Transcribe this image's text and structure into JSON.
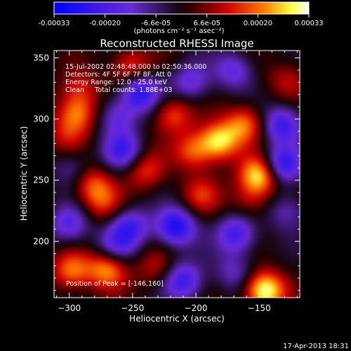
{
  "colorbar": {
    "tick_labels": [
      "-0.00033",
      "-0.00020",
      "-6.6e-05",
      "6.6e-05",
      "0.00020",
      "0.00033"
    ],
    "unit_label": "(photons cm⁻² s⁻¹ asec⁻²)",
    "range": [
      -0.00033,
      0.00033
    ]
  },
  "info": {
    "time_range": "15-Jul-2002 02:48:48.000 to 02:50:36.000",
    "detectors": "Detectors: 4F 5F 6F 7F 8F, Att 0",
    "energy": "Energy Range: 12.0 - 25.0 keV",
    "method": "Clean     Total counts: 1.88E+03",
    "peak": "Position of Peak = [-146,160]"
  },
  "timestamp": "17-Apr-2013 18:31",
  "colors": {
    "background": "#000000",
    "foreground": "#ffffff"
  },
  "chart_data": {
    "type": "heatmap",
    "title": "Reconstructed RHESSI Image",
    "xlabel": "Heliocentric X (arcsec)",
    "ylabel": "Heliocentric Y (arcsec)",
    "xlim": [
      -312,
      -118
    ],
    "ylim": [
      154,
      356
    ],
    "xticks": [
      -300,
      -250,
      -200,
      -150
    ],
    "yticks": [
      200,
      250,
      300,
      350
    ],
    "xtick_labels": [
      "−300",
      "−250",
      "−200",
      "−150"
    ],
    "ytick_labels": [
      "200",
      "250",
      "300",
      "350"
    ],
    "peak": [
      -146,
      160
    ],
    "colormap": "rhessi-blue-red-yellow-white",
    "blobs": [
      {
        "x": -146,
        "y": 160,
        "value": 0.00033
      },
      {
        "x": -150,
        "y": 254,
        "value": 0.0003
      },
      {
        "x": -182,
        "y": 282,
        "value": 0.00027
      },
      {
        "x": -162,
        "y": 296,
        "value": 0.0002
      },
      {
        "x": -202,
        "y": 274,
        "value": 0.00018
      },
      {
        "x": -218,
        "y": 304,
        "value": 0.00017
      },
      {
        "x": -196,
        "y": 238,
        "value": 0.00013
      },
      {
        "x": -240,
        "y": 258,
        "value": 0.00015
      },
      {
        "x": -294,
        "y": 305,
        "value": 0.0002
      },
      {
        "x": -292,
        "y": 325,
        "value": 0.00012
      },
      {
        "x": -302,
        "y": 287,
        "value": 0.0001
      },
      {
        "x": -282,
        "y": 247,
        "value": 0.00016
      },
      {
        "x": -274,
        "y": 232,
        "value": 0.00013
      },
      {
        "x": -252,
        "y": 343,
        "value": 0.00016
      },
      {
        "x": -298,
        "y": 176,
        "value": 0.0002
      },
      {
        "x": -270,
        "y": 178,
        "value": 0.00024
      },
      {
        "x": -232,
        "y": 178,
        "value": 0.0001
      },
      {
        "x": -158,
        "y": 234,
        "value": 0.0001
      },
      {
        "x": -128,
        "y": 332,
        "value": 0.0001
      },
      {
        "x": -244,
        "y": 322,
        "value": -0.00025
      },
      {
        "x": -258,
        "y": 274,
        "value": -0.0002
      },
      {
        "x": -216,
        "y": 212,
        "value": -0.00028
      },
      {
        "x": -252,
        "y": 212,
        "value": -0.0002
      },
      {
        "x": -168,
        "y": 206,
        "value": -0.00022
      },
      {
        "x": -132,
        "y": 262,
        "value": -0.00025
      },
      {
        "x": -132,
        "y": 296,
        "value": -0.00022
      },
      {
        "x": -204,
        "y": 330,
        "value": -0.00016
      },
      {
        "x": -210,
        "y": 168,
        "value": -0.00022
      },
      {
        "x": -264,
        "y": 195,
        "value": -0.00015
      },
      {
        "x": -300,
        "y": 214,
        "value": -0.00018
      },
      {
        "x": -262,
        "y": 302,
        "value": -0.00015
      },
      {
        "x": -170,
        "y": 340,
        "value": -0.00016
      },
      {
        "x": -128,
        "y": 225,
        "value": -0.00012
      },
      {
        "x": -298,
        "y": 260,
        "value": -0.0001
      },
      {
        "x": -170,
        "y": 175,
        "value": -0.00012
      }
    ]
  }
}
